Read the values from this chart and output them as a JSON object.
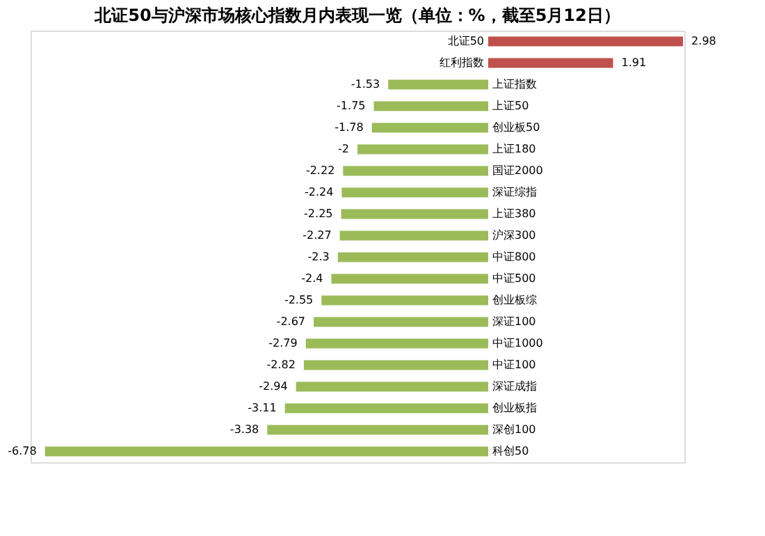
{
  "chart_data": {
    "type": "bar",
    "orientation": "horizontal",
    "title": "北证50与沪深市场核心指数月内表现一览（单位：%，截至5月12日）",
    "categories": [
      "北证50",
      "红利指数",
      "上证指数",
      "上证50",
      "创业板50",
      "上证180",
      "国证2000",
      "深证综指",
      "上证380",
      "沪深300",
      "中证800",
      "中证500",
      "创业板综",
      "深证100",
      "中证1000",
      "中证100",
      "深证成指",
      "创业板指",
      "深创100",
      "科创50"
    ],
    "values": [
      2.98,
      1.91,
      -1.53,
      -1.75,
      -1.78,
      -2,
      -2.22,
      -2.24,
      -2.25,
      -2.27,
      -2.3,
      -2.4,
      -2.55,
      -2.67,
      -2.79,
      -2.82,
      -2.94,
      -3.11,
      -3.38,
      -6.78
    ],
    "colors": [
      "#c0504d",
      "#c0504d",
      "#9bbb59",
      "#9bbb59",
      "#9bbb59",
      "#9bbb59",
      "#9bbb59",
      "#9bbb59",
      "#9bbb59",
      "#9bbb59",
      "#9bbb59",
      "#9bbb59",
      "#9bbb59",
      "#9bbb59",
      "#9bbb59",
      "#9bbb59",
      "#9bbb59",
      "#9bbb59",
      "#9bbb59",
      "#9bbb59"
    ],
    "data_labels": true
  }
}
